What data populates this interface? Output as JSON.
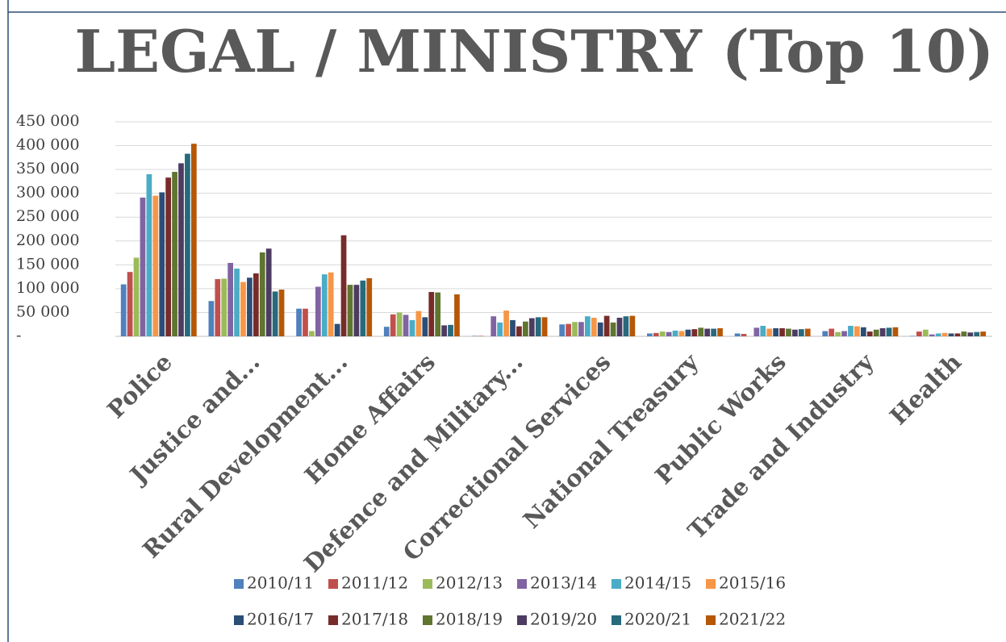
{
  "chart_data": {
    "type": "bar",
    "title": "LEGAL / MINISTRY (Top 10)",
    "categories": [
      "Police",
      "Justice and...",
      "Rural Development...",
      "Home Affairs",
      "Defence and Military...",
      "Correctional Services",
      "National Treasury",
      "Public Works",
      "Trade and Industry",
      "Health"
    ],
    "series": [
      {
        "name": "2010/11",
        "color": "#4f81bd",
        "values": [
          109000,
          74000,
          58000,
          20000,
          1000,
          25000,
          6000,
          6000,
          11000,
          1000
        ]
      },
      {
        "name": "2011/12",
        "color": "#c0504d",
        "values": [
          135000,
          120000,
          58000,
          46000,
          1000,
          26000,
          7000,
          5000,
          16000,
          10000
        ]
      },
      {
        "name": "2012/13",
        "color": "#9bbb59",
        "values": [
          165000,
          121000,
          11000,
          50000,
          0,
          30000,
          10000,
          0,
          9000,
          14000
        ]
      },
      {
        "name": "2013/14",
        "color": "#8064a2",
        "values": [
          291000,
          154000,
          104000,
          45000,
          42000,
          30000,
          9000,
          18000,
          11000,
          4000
        ]
      },
      {
        "name": "2014/15",
        "color": "#4bacc6",
        "values": [
          340000,
          142000,
          130000,
          34000,
          29000,
          42000,
          12000,
          22000,
          22000,
          6000
        ]
      },
      {
        "name": "2015/16",
        "color": "#f79646",
        "values": [
          295000,
          114000,
          134000,
          53000,
          54000,
          39000,
          11000,
          16000,
          21000,
          7000
        ]
      },
      {
        "name": "2016/17",
        "color": "#2c4d75",
        "values": [
          302000,
          123000,
          26000,
          40000,
          34000,
          29000,
          14000,
          17000,
          19000,
          6000
        ]
      },
      {
        "name": "2017/18",
        "color": "#772c2a",
        "values": [
          333000,
          132000,
          212000,
          93000,
          21000,
          43000,
          15000,
          17000,
          10000,
          6000
        ]
      },
      {
        "name": "2018/19",
        "color": "#5f7530",
        "values": [
          345000,
          176000,
          108000,
          92000,
          31000,
          29000,
          18000,
          16000,
          14000,
          10000
        ]
      },
      {
        "name": "2019/20",
        "color": "#4d3b62",
        "values": [
          363000,
          184000,
          108000,
          23000,
          38000,
          39000,
          16000,
          14000,
          17000,
          8000
        ]
      },
      {
        "name": "2020/21",
        "color": "#276a7c",
        "values": [
          383000,
          94000,
          117000,
          24000,
          40000,
          42000,
          16000,
          15000,
          18000,
          9000
        ]
      },
      {
        "name": "2021/22",
        "color": "#b65708",
        "values": [
          404000,
          98000,
          122000,
          88000,
          40000,
          43000,
          17000,
          16000,
          19000,
          10000
        ]
      }
    ],
    "ylim": [
      0,
      450000
    ],
    "yticks": [
      {
        "value": 0,
        "label": "-"
      },
      {
        "value": 50000,
        "label": "50 000"
      },
      {
        "value": 100000,
        "label": "100 000"
      },
      {
        "value": 150000,
        "label": "150 000"
      },
      {
        "value": 200000,
        "label": "200 000"
      },
      {
        "value": 250000,
        "label": "250 000"
      },
      {
        "value": 300000,
        "label": "300 000"
      },
      {
        "value": 350000,
        "label": "350 000"
      },
      {
        "value": 400000,
        "label": "400 000"
      },
      {
        "value": 450000,
        "label": "450 000"
      }
    ],
    "grid": true,
    "legend": "bottom"
  }
}
